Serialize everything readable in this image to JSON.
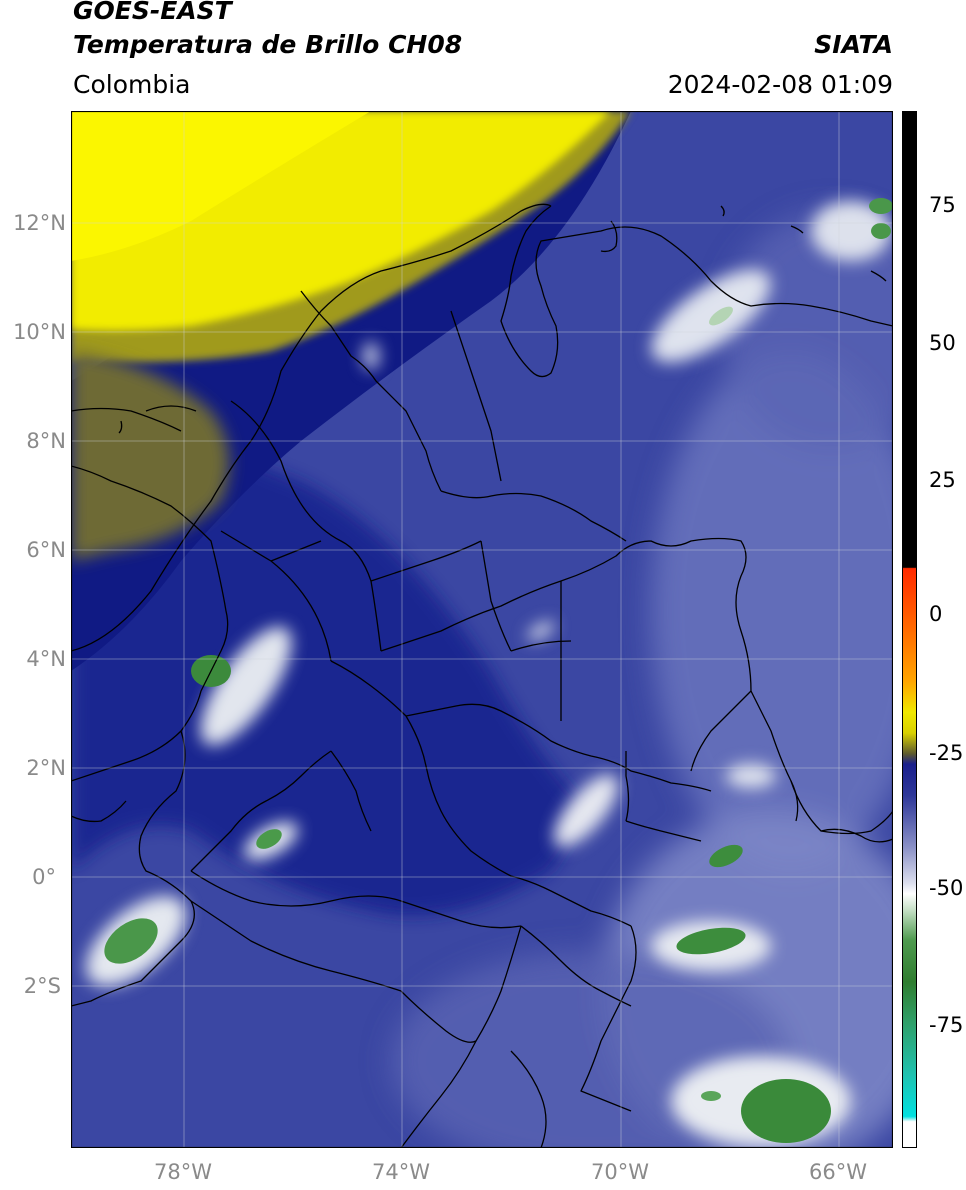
{
  "header": {
    "satellite": "GOES-EAST",
    "product": "Temperatura de Brillo CH08",
    "brand": "SIATA",
    "region": "Colombia",
    "datetime": "2024-02-08 01:09"
  },
  "map": {
    "lat_labels": [
      "12°N",
      "10°N",
      "8°N",
      "6°N",
      "4°N",
      "2°N",
      "0°",
      "2°S"
    ],
    "lon_labels": [
      "78°W",
      "74°W",
      "70°W",
      "66°W"
    ],
    "colors": {
      "warm_yellow": "#f5ef00",
      "olive": "#8a8420",
      "deep_blue": "#0f1a86",
      "mid_blue": "#3d4aa6",
      "light_blue": "#8a92cc",
      "white_cloud": "#eef0f4",
      "cold_green": "#3c8a3c",
      "border": "#000000"
    }
  },
  "colorbar": {
    "tick_labels": [
      "75",
      "50",
      "25",
      "0",
      "-25",
      "-50",
      "-75"
    ],
    "colors": {
      "top": "#000000",
      "red": "#ff2200",
      "orange": "#ff8c00",
      "yellow": "#f0e800",
      "blue": "#1a1f8c",
      "white": "#ffffff",
      "green": "#3c8a3c",
      "cyan": "#00d8d8"
    }
  }
}
